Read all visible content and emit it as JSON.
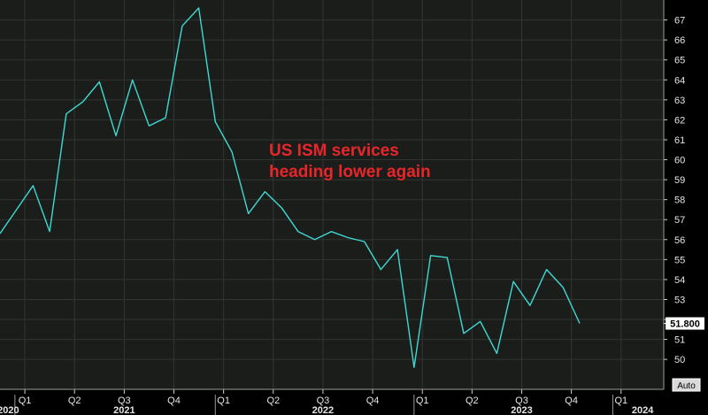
{
  "chart_data": {
    "type": "line",
    "title": "",
    "xlabel": "",
    "ylabel": "",
    "annotation": [
      "US ISM services",
      "heading lower again"
    ],
    "ylim": [
      48.5,
      68
    ],
    "xlim": [
      0,
      41.2
    ],
    "y_ticks": [
      50,
      51,
      52,
      53,
      54,
      55,
      56,
      57,
      58,
      59,
      60,
      61,
      62,
      63,
      64,
      65,
      66,
      67
    ],
    "y_tick_labels": [
      "50",
      "51",
      "",
      "53",
      "54",
      "55",
      "56",
      "57",
      "58",
      "59",
      "60",
      "61",
      "62",
      "63",
      "64",
      "65",
      "66",
      "67"
    ],
    "quarter_ticks": [
      {
        "label": "Q1",
        "pos": 1.5
      },
      {
        "label": "Q2",
        "pos": 4.5
      },
      {
        "label": "Q3",
        "pos": 7.5
      },
      {
        "label": "Q4",
        "pos": 10.5
      },
      {
        "label": "Q1",
        "pos": 13.5
      },
      {
        "label": "Q2",
        "pos": 16.5
      },
      {
        "label": "Q3",
        "pos": 19.5
      },
      {
        "label": "Q4",
        "pos": 22.5
      },
      {
        "label": "Q1",
        "pos": 25.5
      },
      {
        "label": "Q2",
        "pos": 28.5
      },
      {
        "label": "Q3",
        "pos": 31.5
      },
      {
        "label": "Q4",
        "pos": 34.5
      },
      {
        "label": "Q1",
        "pos": 37.5
      }
    ],
    "year_ticks": [
      {
        "label": "2020",
        "pos": 0.5,
        "sep": 0.9
      },
      {
        "label": "2021",
        "pos": 7.5,
        "sep": 13.0
      },
      {
        "label": "2022",
        "pos": 19.5,
        "sep": 25.0
      },
      {
        "label": "2023",
        "pos": 31.5,
        "sep": 37.0
      },
      {
        "label": "2024",
        "pos": 38.8,
        "sep": 0
      }
    ],
    "series": [
      {
        "color": "#3fd9d2",
        "x": [
          0,
          1,
          2,
          3,
          4,
          5,
          6,
          7,
          8,
          9,
          10,
          11,
          12,
          13,
          14,
          15,
          16,
          17,
          18,
          19,
          20,
          21,
          22,
          23,
          24,
          25,
          26,
          27,
          28,
          29,
          30,
          31,
          32,
          33,
          34,
          35
        ],
        "values": [
          56.3,
          57.5,
          58.7,
          56.4,
          62.3,
          62.9,
          63.9,
          61.2,
          64.0,
          61.7,
          62.1,
          66.7,
          67.6,
          61.9,
          60.4,
          57.3,
          58.4,
          57.6,
          56.4,
          56.0,
          56.4,
          56.1,
          55.9,
          54.5,
          55.5,
          49.6,
          55.2,
          55.1,
          51.3,
          51.9,
          50.3,
          53.9,
          52.7,
          54.5,
          53.6,
          51.8
        ]
      }
    ],
    "last_value_label": "51.800",
    "last_value": 51.8
  },
  "controls": {
    "auto_label": "Auto"
  }
}
